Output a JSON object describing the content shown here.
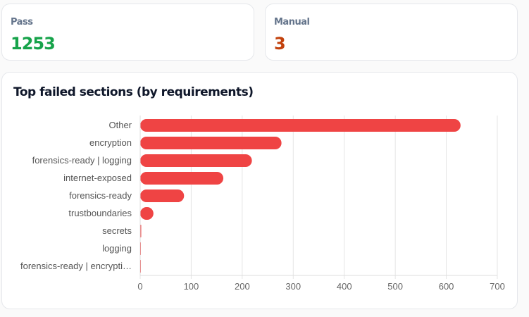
{
  "stats": [
    {
      "label": "Pass",
      "value": "1253",
      "color": "#16a34a"
    },
    {
      "label": "Manual",
      "value": "3",
      "color": "#c2410c"
    }
  ],
  "chart_data": {
    "type": "bar",
    "orientation": "horizontal",
    "title": "Top failed sections (by requirements)",
    "categories": [
      "Other",
      "encryption",
      "forensics-ready | logging",
      "internet-exposed",
      "forensics-ready",
      "trustboundaries",
      "secrets",
      "logging",
      "forensics-ready | encrypti…"
    ],
    "values": [
      628,
      277,
      219,
      163,
      86,
      26,
      2,
      1,
      1
    ],
    "xlim": [
      0,
      700
    ],
    "xticks": [
      0,
      100,
      200,
      300,
      400,
      500,
      600,
      700
    ],
    "grid": true,
    "bar_color": "#ef4444",
    "xlabel": "",
    "ylabel": ""
  }
}
